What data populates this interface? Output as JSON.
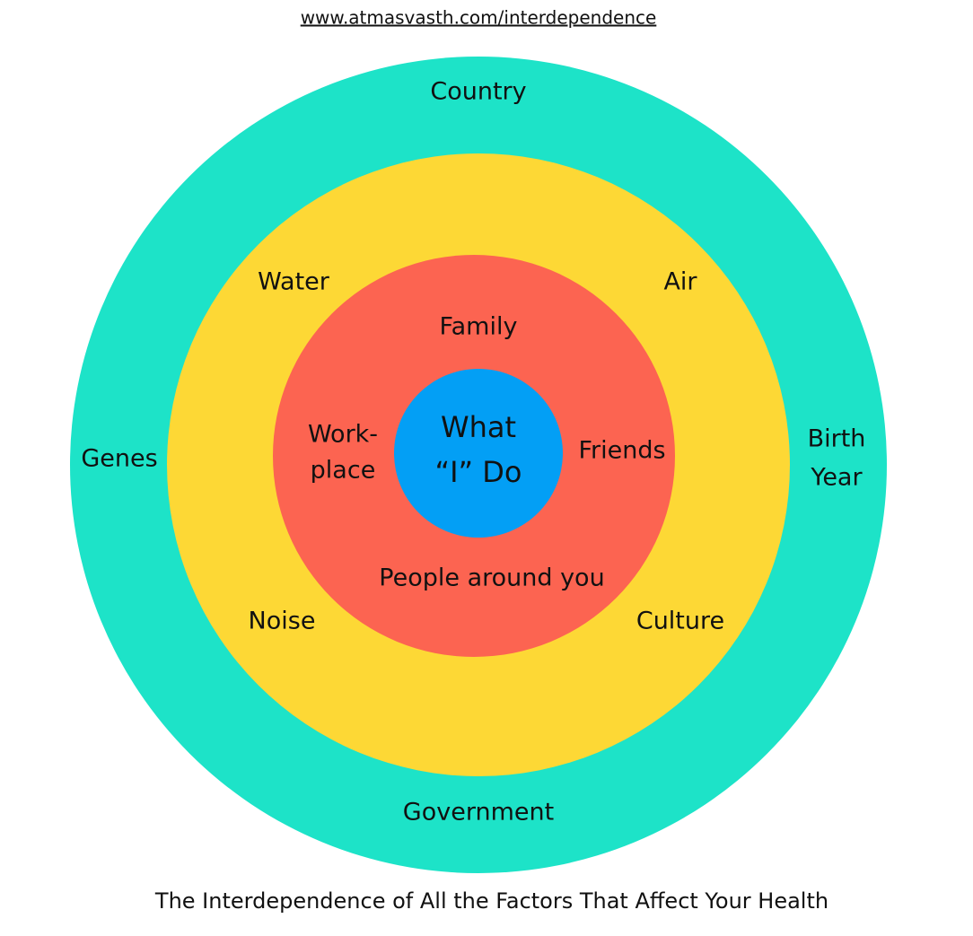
{
  "header": {
    "url": "www.atmasvasth.com/interdependence"
  },
  "rings": {
    "outer": {
      "labels": [
        [
          "Country"
        ],
        [
          "Genes"
        ],
        [
          "Birth",
          "Year"
        ],
        [
          "Government"
        ]
      ]
    },
    "environment": {
      "labels": [
        [
          "Water"
        ],
        [
          "Air"
        ],
        [
          "Noise"
        ],
        [
          "Culture"
        ]
      ]
    },
    "people": {
      "labels": [
        [
          "Family"
        ],
        [
          "Work-",
          "place"
        ],
        [
          "Friends"
        ],
        [
          "People around you"
        ]
      ]
    },
    "center": {
      "label": [
        "What",
        "“I” Do"
      ]
    }
  },
  "caption": "The Interdependence of All the Factors That Affect Your Health"
}
